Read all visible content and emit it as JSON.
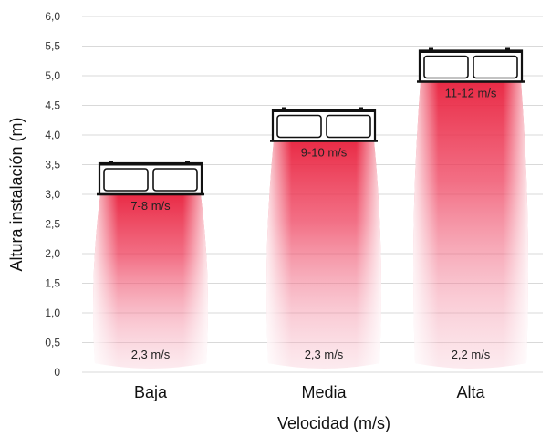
{
  "chart_data": {
    "type": "bar",
    "xlabel": "Velocidad (m/s)",
    "ylabel": "Altura instalación (m)",
    "ylim": [
      0,
      6.0
    ],
    "yticks": [
      "0",
      "0,5",
      "1,0",
      "1,5",
      "2,0",
      "2,5",
      "3,0",
      "3,5",
      "4,0",
      "4,5",
      "5,0",
      "5,5",
      "6,0"
    ],
    "grid": "horizontal",
    "categories": [
      "Baja",
      "Media",
      "Alta"
    ],
    "values": [
      3.0,
      3.9,
      4.9
    ],
    "top_labels": [
      "7-8 m/s",
      "9-10 m/s",
      "11-12 m/s"
    ],
    "bottom_labels": [
      "2,3 m/s",
      "2,3 m/s",
      "2,2 m/s"
    ],
    "bar_color": "#e8203c"
  }
}
